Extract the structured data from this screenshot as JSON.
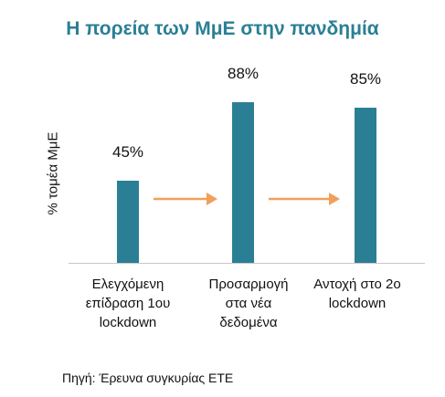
{
  "chart_data": {
    "type": "bar",
    "title": "Η πορεία των ΜμΕ στην πανδημία",
    "ylabel": "% τομέα ΜμΕ",
    "xlabel": "",
    "ylim": [
      0,
      100
    ],
    "grid": false,
    "categories": [
      [
        "Ελεγχόμενη",
        "επίδραση 1ου",
        "lockdown"
      ],
      [
        "Προσαρμογή",
        "στα νέα",
        "δεδομένα"
      ],
      [
        "Αντοχή στο 2ο",
        "lockdown"
      ]
    ],
    "values": [
      45,
      88,
      85
    ],
    "data_labels": [
      "45%",
      "88%",
      "85%"
    ],
    "arrows_between_bars": 2,
    "colors": {
      "bar": "#2a7f95",
      "arrow": "#f0a05a",
      "title": "#2a7f95",
      "axis": "#c8c8c8"
    }
  },
  "source": "Πηγή: Έρευνα συγκυρίας ΕΤΕ"
}
